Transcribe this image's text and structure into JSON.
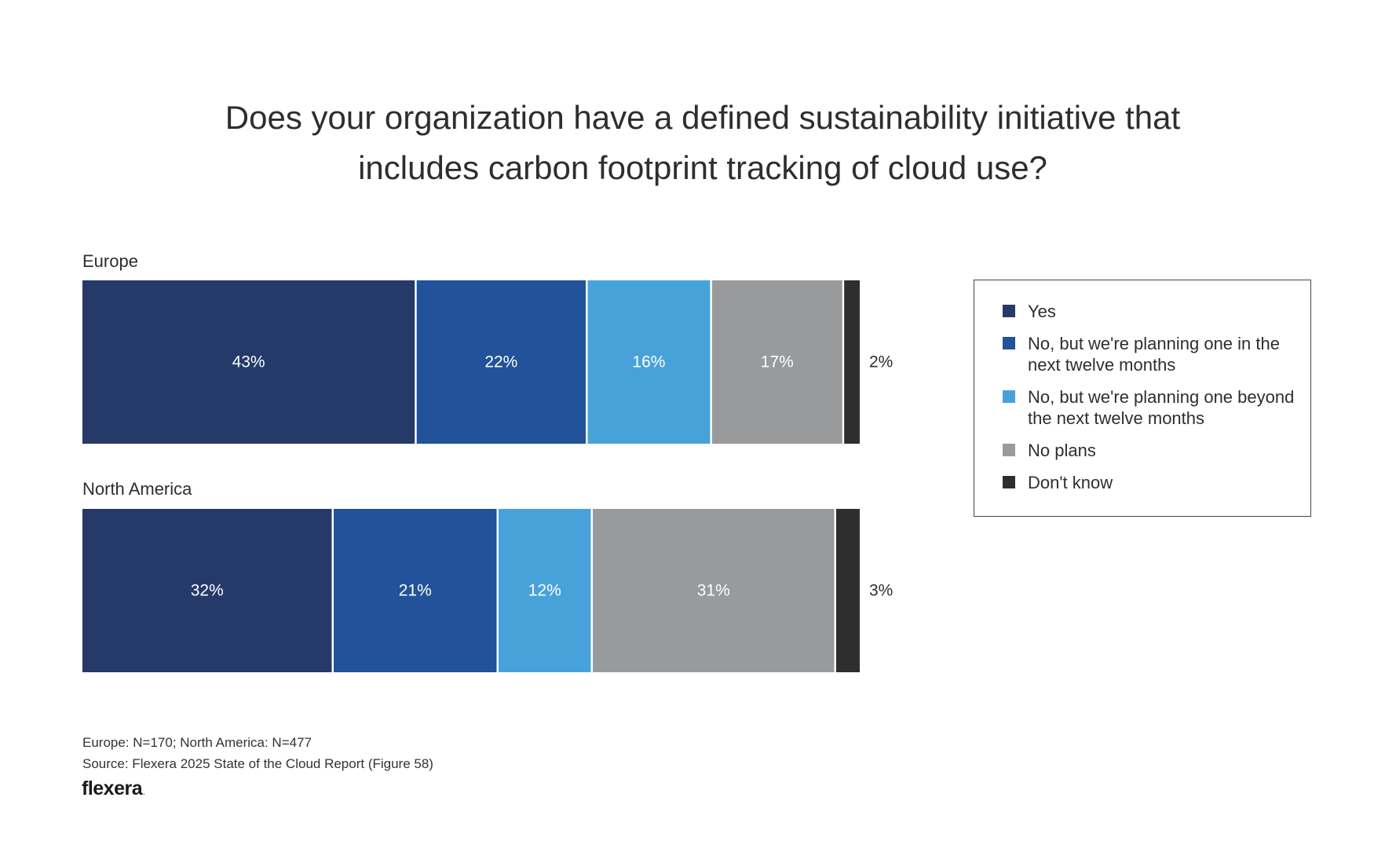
{
  "chart_data": {
    "type": "bar",
    "orientation": "horizontal-stacked-100",
    "title": "Does your organization have a defined sustainability initiative that includes carbon footprint tracking of cloud use?",
    "title_lines": [
      "Does your organization have a defined sustainability initiative that",
      "includes carbon footprint tracking of cloud use?"
    ],
    "categories": [
      "Europe",
      "North America"
    ],
    "series": [
      {
        "name": "Yes",
        "values": [
          43,
          32
        ],
        "color": "#253a68"
      },
      {
        "name": "No, but we're planning one in the next twelve months",
        "values": [
          22,
          21
        ],
        "color": "#21529a"
      },
      {
        "name": "No, but we're planning one beyond the next twelve months",
        "values": [
          16,
          12
        ],
        "color": "#48a2da"
      },
      {
        "name": "No plans",
        "values": [
          17,
          31
        ],
        "color": "#999a9c"
      },
      {
        "name": "Don't know",
        "values": [
          2,
          3
        ],
        "color": "#2e2e2e"
      }
    ],
    "value_suffix": "%",
    "legend_position": "right",
    "grid": false
  },
  "legend": {
    "items": [
      {
        "label_lines": [
          "No, but we're planning one in",
          "the next twelve months"
        ]
      }
    ]
  },
  "footnotes": {
    "sample": "Europe: N=170; North America: N=477",
    "source": "Source: Flexera 2025 State of the Cloud Report (Figure 58)"
  },
  "brand": {
    "logo_text": "flexera",
    "logo_mark": "."
  }
}
